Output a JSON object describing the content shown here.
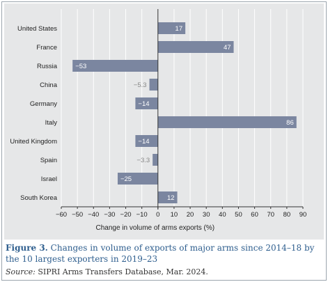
{
  "chart_data": {
    "type": "bar",
    "orientation": "horizontal",
    "categories": [
      "United States",
      "France",
      "Russia",
      "China",
      "Germany",
      "Italy",
      "United Kingdom",
      "Spain",
      "Israel",
      "South Korea"
    ],
    "values": [
      17,
      47,
      -53,
      -5.3,
      -14,
      86,
      -14,
      -3.3,
      -25,
      12
    ],
    "value_labels": [
      "17",
      "47",
      "−53",
      "−5.3",
      "−14",
      "86",
      "−14",
      "−3.3",
      "−25",
      "12"
    ],
    "xlabel": "Change in volume of arms exports (%)",
    "xlim": [
      -60,
      90
    ],
    "xticks": [
      -60,
      -50,
      -40,
      -30,
      -20,
      -10,
      0,
      10,
      20,
      30,
      40,
      50,
      60,
      70,
      80,
      90
    ],
    "xtick_labels": [
      "−60",
      "−50",
      "−40",
      "−30",
      "−20",
      "−10",
      "0",
      "10",
      "20",
      "30",
      "40",
      "50",
      "60",
      "70",
      "80",
      "90"
    ],
    "grid": true,
    "colors": {
      "bar": "#7b86a0",
      "panel": "#e6e7e8",
      "grid": "#ffffff",
      "axis": "#333333",
      "caption": "#2e5e8e"
    }
  },
  "caption": {
    "figure_label": "Figure 3.",
    "text": " Changes in volume of exports of major arms since 2014–18 by the 10 largest exporters in 2019–23"
  },
  "source": {
    "label": "Source:",
    "text": " SIPRI Arms Transfers Database, Mar. 2024."
  }
}
